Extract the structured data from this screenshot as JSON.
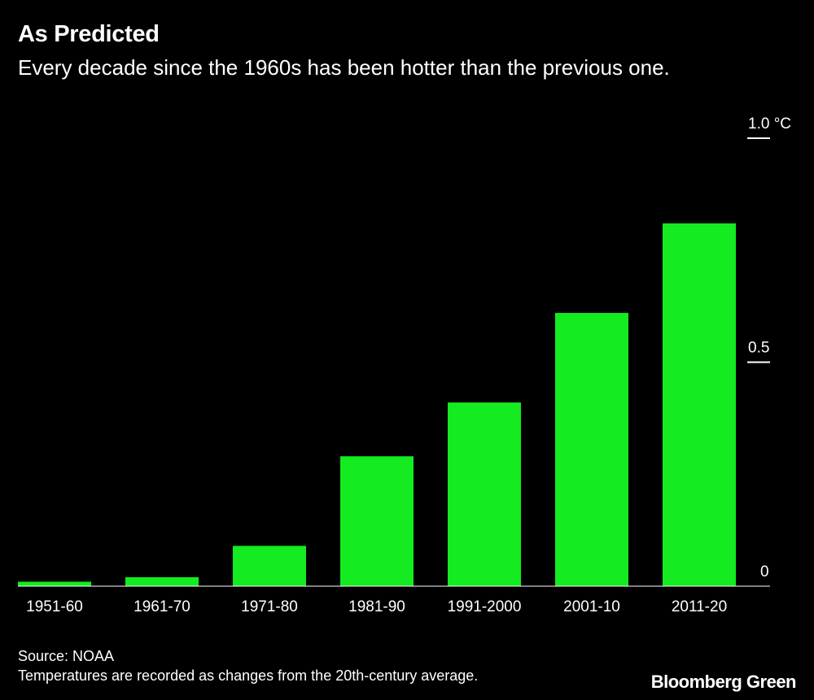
{
  "header": {
    "title": "As Predicted",
    "subtitle": "Every decade since the 1960s has been hotter than the previous one."
  },
  "footer": {
    "source": "Source: NOAA",
    "note": "Temperatures are recorded as changes from the 20th-century average.",
    "brand": "Bloomberg Green"
  },
  "colors": {
    "background": "#000000",
    "bar": "#14eb20",
    "text": "#ffffff"
  },
  "chart_data": {
    "type": "bar",
    "title": "As Predicted",
    "subtitle": "Every decade since the 1960s has been hotter than the previous one.",
    "xlabel": "",
    "ylabel": "",
    "categories": [
      "1951-60",
      "1961-70",
      "1971-80",
      "1981-90",
      "1991-2000",
      "2001-10",
      "2011-20"
    ],
    "values": [
      0.01,
      0.02,
      0.09,
      0.29,
      0.41,
      0.61,
      0.81
    ],
    "ylim": [
      0,
      1.0
    ],
    "yticks": [
      {
        "value": 0,
        "label": "0"
      },
      {
        "value": 0.5,
        "label": "0.5"
      },
      {
        "value": 1.0,
        "label": "1.0 °C"
      }
    ],
    "grid": false,
    "yaxis_position": "right",
    "legend": "none"
  }
}
